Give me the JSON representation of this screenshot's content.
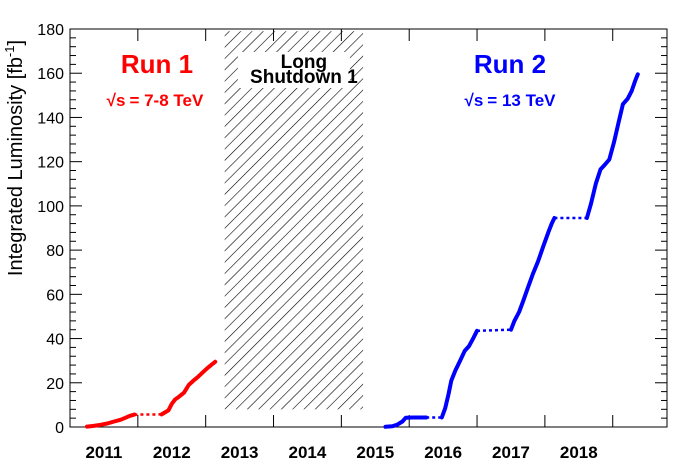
{
  "chart_data": {
    "type": "line",
    "xlim": [
      2010.5,
      2019.3
    ],
    "ylim": [
      0,
      180
    ],
    "yticks": [
      "0",
      "20",
      "40",
      "60",
      "80",
      "100",
      "120",
      "140",
      "160",
      "180"
    ],
    "x_tick_labels": [
      {
        "x": 2011,
        "label": "2011"
      },
      {
        "x": 2012,
        "label": "2012"
      },
      {
        "x": 2013,
        "label": "2013"
      },
      {
        "x": 2014,
        "label": "2014"
      },
      {
        "x": 2015,
        "label": "2015"
      },
      {
        "x": 2016,
        "label": "2016"
      },
      {
        "x": 2017,
        "label": "2017"
      },
      {
        "x": 2018,
        "label": "2018"
      }
    ],
    "ylabel_main": "Integrated Luminosity [fb",
    "ylabel_sup": "-1",
    "ylabel_close": "]",
    "grid": false,
    "shutdown": {
      "label_line1": "Long",
      "label_line2": "Shutdown 1",
      "x_start": 2012.78,
      "x_end": 2014.82,
      "y_bottom": 8,
      "y_top": 179
    },
    "annotations": {
      "run1_title": "Run 1",
      "run1_energy": "= 7-8 TeV",
      "run2_title": "Run 2",
      "run2_energy": "= 13 TeV",
      "sqrt_s": "√s"
    },
    "series": [
      {
        "key": "run1",
        "color": "#ff0000",
        "segments": [
          {
            "style": "solid",
            "x": [
              2010.75,
              2010.85,
              2010.95,
              2011.05,
              2011.15,
              2011.25,
              2011.32,
              2011.38,
              2011.45
            ],
            "y": [
              0.2,
              0.5,
              1.0,
              1.6,
              2.5,
              3.3,
              4.2,
              5.0,
              5.6
            ]
          },
          {
            "style": "dotted",
            "x": [
              2011.45,
              2011.85
            ],
            "y": [
              5.6,
              5.7
            ]
          },
          {
            "style": "solid",
            "x": [
              2011.85,
              2011.95,
              2012.0,
              2012.05,
              2012.1,
              2012.18,
              2012.25,
              2012.32,
              2012.38,
              2012.45,
              2012.52,
              2012.58,
              2012.64
            ],
            "y": [
              5.7,
              7.5,
              10.5,
              12.5,
              13.5,
              15.5,
              19.0,
              21.0,
              22.5,
              24.5,
              26.5,
              28.0,
              29.5
            ]
          }
        ]
      },
      {
        "key": "run2",
        "color": "#0000ff",
        "segments": [
          {
            "style": "solid",
            "x": [
              2015.15,
              2015.25,
              2015.32,
              2015.4,
              2015.45,
              2015.55,
              2015.65,
              2015.75
            ],
            "y": [
              0.1,
              0.3,
              1.0,
              2.5,
              4.2,
              4.3,
              4.3,
              4.3
            ]
          },
          {
            "style": "dotted",
            "x": [
              2015.75,
              2015.98
            ],
            "y": [
              4.3,
              4.3
            ]
          },
          {
            "style": "solid",
            "x": [
              2015.98,
              2016.03,
              2016.08,
              2016.12,
              2016.18,
              2016.25,
              2016.32,
              2016.38,
              2016.45,
              2016.5
            ],
            "y": [
              4.3,
              8.5,
              15.0,
              21.0,
              25.5,
              30.0,
              34.5,
              36.5,
              40.5,
              43.5
            ]
          },
          {
            "style": "dotted",
            "x": [
              2016.5,
              2017.0
            ],
            "y": [
              43.5,
              44.0
            ]
          },
          {
            "style": "solid",
            "x": [
              2017.0,
              2017.05,
              2017.12,
              2017.18,
              2017.25,
              2017.32,
              2017.4,
              2017.48,
              2017.55,
              2017.6,
              2017.64
            ],
            "y": [
              44.0,
              48.0,
              52.0,
              57.0,
              63.0,
              69.0,
              75.0,
              82.0,
              88.0,
              92.0,
              94.5
            ]
          },
          {
            "style": "dotted",
            "x": [
              2017.64,
              2018.12
            ],
            "y": [
              94.5,
              94.5
            ]
          },
          {
            "style": "solid",
            "x": [
              2018.12,
              2018.18,
              2018.25,
              2018.32,
              2018.38,
              2018.45,
              2018.52,
              2018.58,
              2018.65,
              2018.72,
              2018.78,
              2018.83,
              2018.87
            ],
            "y": [
              94.5,
              101.0,
              110.0,
              116.5,
              118.5,
              121.0,
              129.0,
              137.0,
              146.0,
              148.5,
              152.0,
              156.5,
              159.5
            ]
          }
        ]
      }
    ]
  }
}
